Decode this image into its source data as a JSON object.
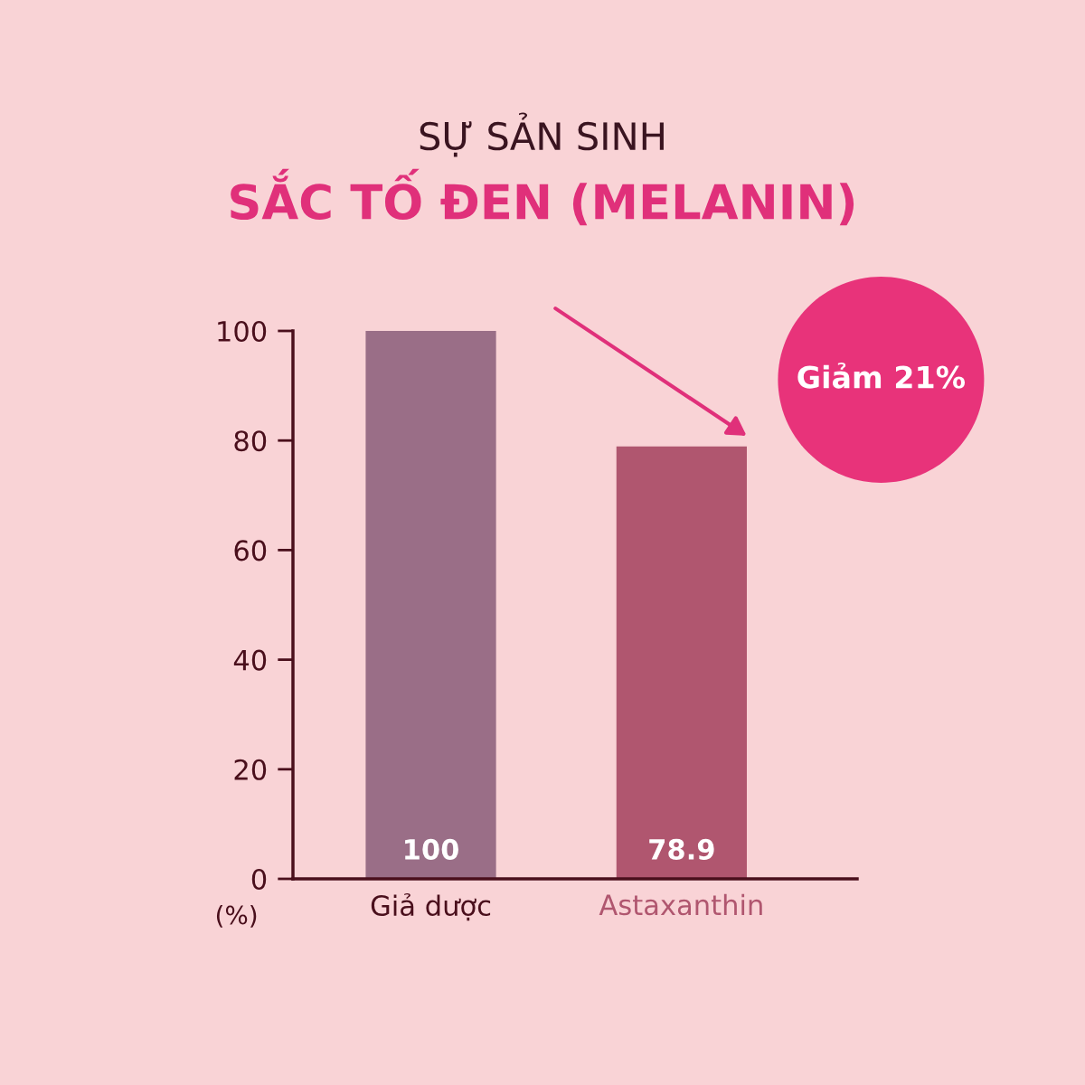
{
  "chart_data": {
    "type": "bar",
    "title": "SỰ SẢN SINH",
    "subtitle": "SẮC TỐ ĐEN (MELANIN)",
    "ylabel": "(%)",
    "categories": [
      "Giả dược",
      "Astaxanthin"
    ],
    "values": [
      100,
      78.9
    ],
    "colors": [
      "#9a6e87",
      "#b0566f"
    ],
    "ylim": [
      0,
      100
    ],
    "yticks": [
      0,
      20,
      40,
      60,
      80,
      100
    ],
    "grid": false,
    "data_labels": true,
    "annotations": [
      "Giảm 21%"
    ]
  }
}
